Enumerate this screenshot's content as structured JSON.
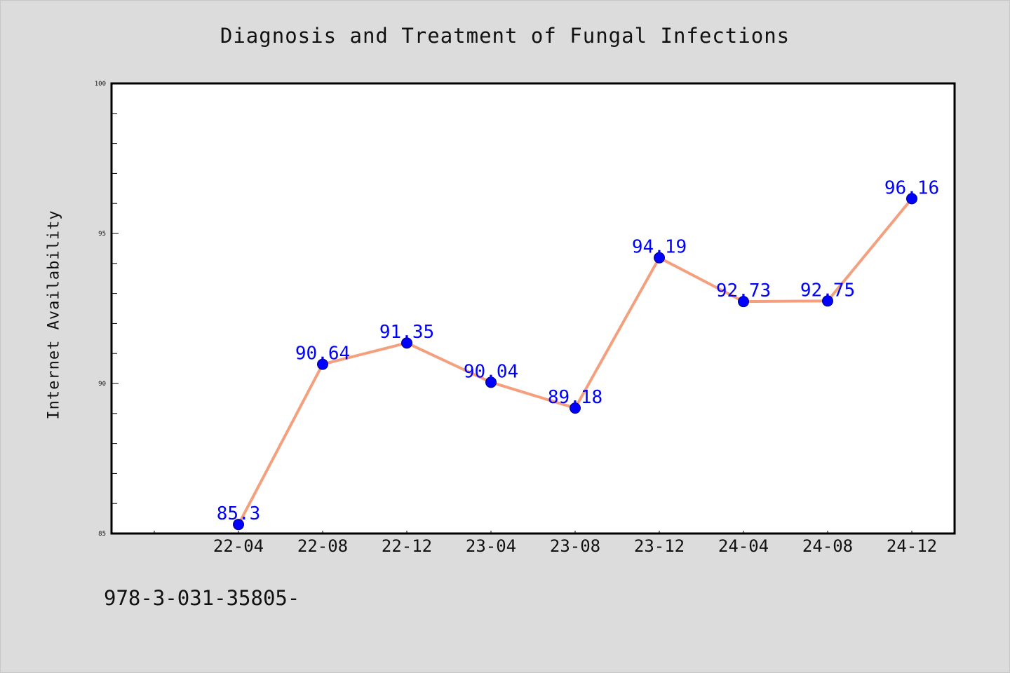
{
  "chart_data": {
    "type": "line",
    "title": "Diagnosis and Treatment of Fungal Infections",
    "xlabel": "",
    "ylabel": "Internet Availability",
    "categories": [
      "22-04",
      "22-08",
      "22-12",
      "23-04",
      "23-08",
      "23-12",
      "24-04",
      "24-08",
      "24-12"
    ],
    "values": [
      85.3,
      90.64,
      91.35,
      90.04,
      89.18,
      94.19,
      92.73,
      92.75,
      96.16
    ],
    "data_labels": [
      "85.3",
      "90.64",
      "91.35",
      "90.04",
      "89.18",
      "94.19",
      "92.73",
      "92.75",
      "96.16"
    ],
    "ylim": [
      85,
      100
    ],
    "y_ticks": [
      85,
      90,
      95,
      100
    ],
    "grid": false,
    "legend": "none",
    "colors": {
      "line": "#f4a07e",
      "marker": "#0000ff",
      "data_label": "#0000ff",
      "plot_background": "#ffffff",
      "figure_background": "#dcdcdc"
    }
  },
  "footer": {
    "text": "978-3-031-35805-"
  }
}
